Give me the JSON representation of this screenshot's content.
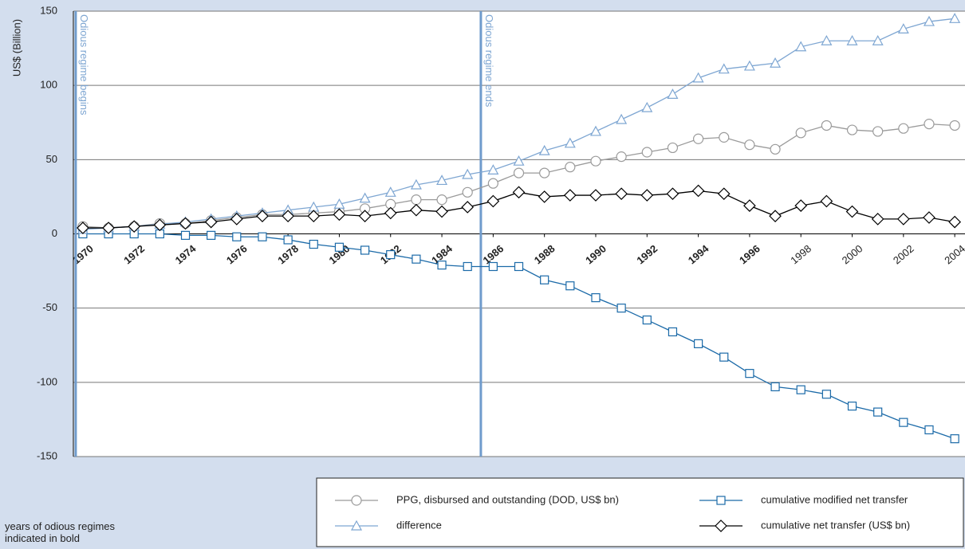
{
  "chart_data": {
    "type": "line",
    "y_label": "US$ (Billion)",
    "x": [
      1970,
      1971,
      1972,
      1973,
      1974,
      1975,
      1976,
      1977,
      1978,
      1979,
      1980,
      1981,
      1982,
      1983,
      1984,
      1985,
      1986,
      1987,
      1988,
      1989,
      1990,
      1991,
      1992,
      1993,
      1994,
      1995,
      1996,
      1997,
      1998,
      1999,
      2000,
      2001,
      2002,
      2003,
      2004
    ],
    "xlim": [
      1969.63,
      2004.4
    ],
    "xticks": [
      1970,
      1972,
      1974,
      1976,
      1978,
      1980,
      1982,
      1984,
      1986,
      1988,
      1990,
      1992,
      1994,
      1996,
      1998,
      2000,
      2002,
      2004
    ],
    "bold_until": 1998,
    "ylim": [
      -150,
      150
    ],
    "yticks": [
      -150,
      -100,
      -50,
      0,
      50,
      100,
      150
    ],
    "grid": true,
    "series": [
      {
        "name": "PPG, disbursed and outstanding (DOD, US$ bn)",
        "color": "#9a9a9a",
        "marker": "circle",
        "values": [
          5,
          4,
          5,
          7,
          7,
          9,
          11,
          13,
          13,
          14,
          15,
          17,
          20,
          23,
          23,
          28,
          34,
          41,
          41,
          45,
          49,
          52,
          55,
          58,
          64,
          65,
          60,
          57,
          68,
          73,
          70,
          69,
          71,
          74,
          73
        ]
      },
      {
        "name": "cumulative modified net transfer",
        "color": "#1b6aa8",
        "marker": "square",
        "values": [
          0,
          0,
          0,
          0,
          -1,
          -1,
          -2,
          -2,
          -4,
          -7,
          -9,
          -11,
          -14,
          -17,
          -21,
          -22,
          -22,
          -22,
          -31,
          -35,
          -43,
          -50,
          -58,
          -66,
          -74,
          -83,
          -94,
          -103,
          -105,
          -108,
          -116,
          -120,
          -127,
          -132,
          -138
        ]
      },
      {
        "name": "difference",
        "color": "#7ea6d2",
        "marker": "triangle",
        "values": [
          3,
          4,
          5,
          6.5,
          8,
          10,
          12,
          14,
          16,
          18,
          20,
          24,
          28,
          33,
          36,
          40,
          43,
          49,
          56,
          61,
          69,
          77,
          85,
          94,
          105,
          111,
          113,
          115,
          126,
          130,
          130,
          130,
          138,
          143,
          145
        ]
      },
      {
        "name": "cumulative net transfer (US$ bn)",
        "color": "#000000",
        "marker": "diamond",
        "values": [
          4,
          4,
          5,
          6,
          7,
          8,
          10,
          12,
          12,
          12,
          13,
          12,
          14,
          16,
          15,
          18,
          22,
          28,
          25,
          26,
          26,
          27,
          26,
          27,
          29,
          27,
          19,
          12,
          19,
          22,
          15,
          10,
          10,
          11,
          8
        ]
      }
    ],
    "annotations": [
      {
        "text": "Odious regime begins",
        "x": 1969.72
      },
      {
        "text": "Odious regime ends",
        "x": 1985.52
      }
    ],
    "footnote": [
      "years of  odious regimes",
      "indicated in bold"
    ]
  }
}
